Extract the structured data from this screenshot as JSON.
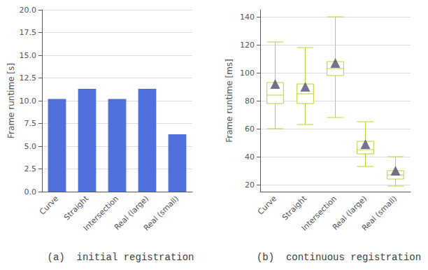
{
  "chart_data": [
    {
      "type": "bar",
      "title": "(a)  initial registration",
      "categories": [
        "Curve",
        "Straight",
        "Intersection",
        "Real (large)",
        "Real (small)"
      ],
      "values": [
        10.2,
        11.3,
        10.2,
        11.3,
        6.3
      ],
      "ylabel": "Frame runtime [s]",
      "ylim": [
        0,
        20
      ],
      "yticks": [
        {
          "value": 0,
          "label": "0.0"
        },
        2.5,
        {
          "value": 5,
          "label": "5.0"
        },
        7.5,
        {
          "value": 10,
          "label": "10.0"
        },
        12.5,
        {
          "value": 15,
          "label": "15.0"
        },
        17.5,
        {
          "value": 20,
          "label": "20.0"
        }
      ],
      "grid": true
    },
    {
      "type": "box",
      "title": "(b)  continuous registration",
      "categories": [
        "Curve",
        "Straight",
        "Intersection",
        "Real (large)",
        "Real (small)"
      ],
      "whislo": [
        60,
        63,
        68,
        33,
        19
      ],
      "q1": [
        78,
        78,
        98,
        42,
        24
      ],
      "median": [
        84,
        85,
        103,
        45,
        27
      ],
      "q3": [
        93,
        92,
        108,
        51,
        30
      ],
      "whishi": [
        122,
        118,
        140,
        65,
        40
      ],
      "mean": [
        92,
        90,
        107,
        49,
        30
      ],
      "marker": "triangle",
      "ylabel": "Frame runtime [ms]",
      "ylim": [
        15,
        145
      ],
      "yticks": [
        20,
        40,
        60,
        80,
        100,
        120,
        140
      ],
      "grid": true
    }
  ]
}
